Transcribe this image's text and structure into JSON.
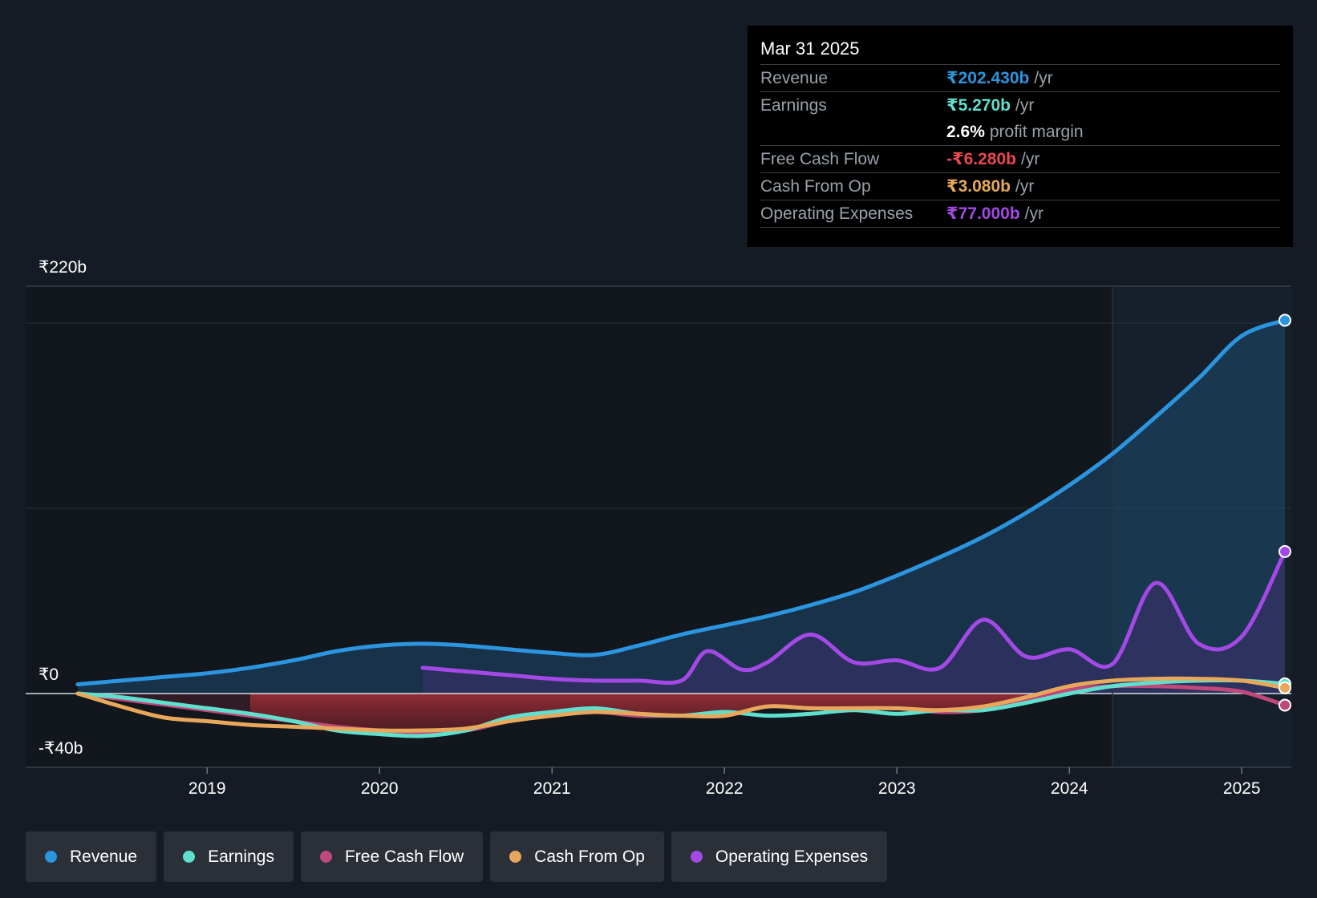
{
  "chart_data": {
    "type": "line",
    "y_axis": {
      "top_label": "₹220b",
      "zero_label": "₹0",
      "bottom_label": "-₹40b",
      "ylim": [
        -40,
        220
      ]
    },
    "x_ticks": [
      "2019",
      "2020",
      "2021",
      "2022",
      "2023",
      "2024",
      "2025"
    ],
    "xlim": [
      2018.25,
      2025.25
    ],
    "past_data_divider": 2024.25,
    "series": [
      {
        "key": "revenue",
        "name": "Revenue",
        "color": "#2b95e0",
        "fill": true,
        "points": [
          [
            2018.25,
            5
          ],
          [
            2018.5,
            7
          ],
          [
            2018.75,
            9
          ],
          [
            2019,
            11
          ],
          [
            2019.25,
            14
          ],
          [
            2019.5,
            18
          ],
          [
            2019.75,
            23
          ],
          [
            2020,
            26
          ],
          [
            2020.25,
            27
          ],
          [
            2020.5,
            26
          ],
          [
            2020.75,
            24
          ],
          [
            2021,
            22
          ],
          [
            2021.25,
            21
          ],
          [
            2021.5,
            26
          ],
          [
            2021.75,
            32
          ],
          [
            2022,
            37
          ],
          [
            2022.25,
            42
          ],
          [
            2022.5,
            48
          ],
          [
            2022.75,
            55
          ],
          [
            2023,
            64
          ],
          [
            2023.25,
            74
          ],
          [
            2023.5,
            85
          ],
          [
            2023.75,
            98
          ],
          [
            2024,
            113
          ],
          [
            2024.25,
            130
          ],
          [
            2024.5,
            150
          ],
          [
            2024.75,
            171
          ],
          [
            2025,
            194
          ],
          [
            2025.25,
            202.43
          ]
        ]
      },
      {
        "key": "opex",
        "name": "Operating Expenses",
        "color": "#a349e6",
        "fill": true,
        "points": [
          [
            2020.25,
            14
          ],
          [
            2020.5,
            12
          ],
          [
            2020.75,
            10
          ],
          [
            2021,
            8
          ],
          [
            2021.25,
            7
          ],
          [
            2021.5,
            7
          ],
          [
            2021.75,
            7
          ],
          [
            2021.9,
            23
          ],
          [
            2022.1,
            13
          ],
          [
            2022.25,
            17
          ],
          [
            2022.5,
            32
          ],
          [
            2022.75,
            17
          ],
          [
            2023,
            18
          ],
          [
            2023.25,
            14
          ],
          [
            2023.5,
            40
          ],
          [
            2023.75,
            20
          ],
          [
            2024,
            24
          ],
          [
            2024.25,
            16
          ],
          [
            2024.5,
            60
          ],
          [
            2024.75,
            27
          ],
          [
            2025,
            31
          ],
          [
            2025.25,
            77
          ]
        ]
      },
      {
        "key": "fcf",
        "name": "Free Cash Flow",
        "color": "#c0487a",
        "fill_negative": true,
        "points": [
          [
            2018.25,
            0
          ],
          [
            2018.5,
            -3
          ],
          [
            2018.75,
            -6
          ],
          [
            2019,
            -9
          ],
          [
            2019.25,
            -12
          ],
          [
            2019.5,
            -15
          ],
          [
            2019.75,
            -18
          ],
          [
            2020,
            -20
          ],
          [
            2020.25,
            -21
          ],
          [
            2020.5,
            -20
          ],
          [
            2020.75,
            -15
          ],
          [
            2021,
            -12
          ],
          [
            2021.25,
            -10
          ],
          [
            2021.5,
            -12
          ],
          [
            2021.75,
            -12
          ],
          [
            2022,
            -12
          ],
          [
            2022.25,
            -7
          ],
          [
            2022.5,
            -8
          ],
          [
            2022.75,
            -8
          ],
          [
            2023,
            -8
          ],
          [
            2023.25,
            -10
          ],
          [
            2023.5,
            -9
          ],
          [
            2023.75,
            -4
          ],
          [
            2024,
            2
          ],
          [
            2024.25,
            4
          ],
          [
            2024.5,
            4
          ],
          [
            2024.75,
            3
          ],
          [
            2025,
            1
          ],
          [
            2025.25,
            -6.28
          ]
        ]
      },
      {
        "key": "cfo",
        "name": "Cash From Op",
        "color": "#e8a85b",
        "points": [
          [
            2018.25,
            0
          ],
          [
            2018.5,
            -7
          ],
          [
            2018.75,
            -13
          ],
          [
            2019,
            -15
          ],
          [
            2019.25,
            -17
          ],
          [
            2019.5,
            -18
          ],
          [
            2019.75,
            -19
          ],
          [
            2020,
            -20
          ],
          [
            2020.25,
            -20
          ],
          [
            2020.5,
            -19
          ],
          [
            2020.75,
            -15
          ],
          [
            2021,
            -12
          ],
          [
            2021.25,
            -10
          ],
          [
            2021.5,
            -11
          ],
          [
            2021.75,
            -12
          ],
          [
            2022,
            -12
          ],
          [
            2022.25,
            -7
          ],
          [
            2022.5,
            -8
          ],
          [
            2022.75,
            -8
          ],
          [
            2023,
            -8
          ],
          [
            2023.25,
            -9
          ],
          [
            2023.5,
            -7
          ],
          [
            2023.75,
            -2
          ],
          [
            2024,
            4
          ],
          [
            2024.25,
            7
          ],
          [
            2024.5,
            8
          ],
          [
            2024.75,
            8
          ],
          [
            2025,
            7
          ],
          [
            2025.25,
            3.08
          ]
        ]
      },
      {
        "key": "earnings",
        "name": "Earnings",
        "color": "#5fe0cf",
        "points": [
          [
            2018.25,
            0
          ],
          [
            2018.5,
            -2
          ],
          [
            2018.75,
            -5
          ],
          [
            2019,
            -8
          ],
          [
            2019.25,
            -11
          ],
          [
            2019.5,
            -15
          ],
          [
            2019.75,
            -20
          ],
          [
            2020,
            -22
          ],
          [
            2020.25,
            -23
          ],
          [
            2020.5,
            -20
          ],
          [
            2020.75,
            -13
          ],
          [
            2021,
            -10
          ],
          [
            2021.25,
            -8
          ],
          [
            2021.5,
            -11
          ],
          [
            2021.75,
            -12
          ],
          [
            2022,
            -10
          ],
          [
            2022.25,
            -12
          ],
          [
            2022.5,
            -11
          ],
          [
            2022.75,
            -9
          ],
          [
            2023,
            -11
          ],
          [
            2023.25,
            -9
          ],
          [
            2023.5,
            -9
          ],
          [
            2023.75,
            -5
          ],
          [
            2024,
            0
          ],
          [
            2024.25,
            4
          ],
          [
            2024.5,
            6
          ],
          [
            2024.75,
            7
          ],
          [
            2025,
            7
          ],
          [
            2025.25,
            5.27
          ]
        ]
      }
    ]
  },
  "tooltip": {
    "date": "Mar 31 2025",
    "revenue": {
      "label": "Revenue",
      "value": "₹202.430b",
      "unit": "/yr"
    },
    "earnings": {
      "label": "Earnings",
      "value": "₹5.270b",
      "unit": "/yr"
    },
    "margin": {
      "value": "2.6%",
      "unit": "profit margin"
    },
    "fcf": {
      "label": "Free Cash Flow",
      "value": "-₹6.280b",
      "unit": "/yr"
    },
    "cfo": {
      "label": "Cash From Op",
      "value": "₹3.080b",
      "unit": "/yr"
    },
    "opex": {
      "label": "Operating Expenses",
      "value": "₹77.000b",
      "unit": "/yr"
    }
  },
  "legend": [
    {
      "label": "Revenue",
      "color": "#2b95e0"
    },
    {
      "label": "Earnings",
      "color": "#5fe0cf"
    },
    {
      "label": "Free Cash Flow",
      "color": "#c0487a"
    },
    {
      "label": "Cash From Op",
      "color": "#e8a85b"
    },
    {
      "label": "Operating Expenses",
      "color": "#a349e6"
    }
  ]
}
